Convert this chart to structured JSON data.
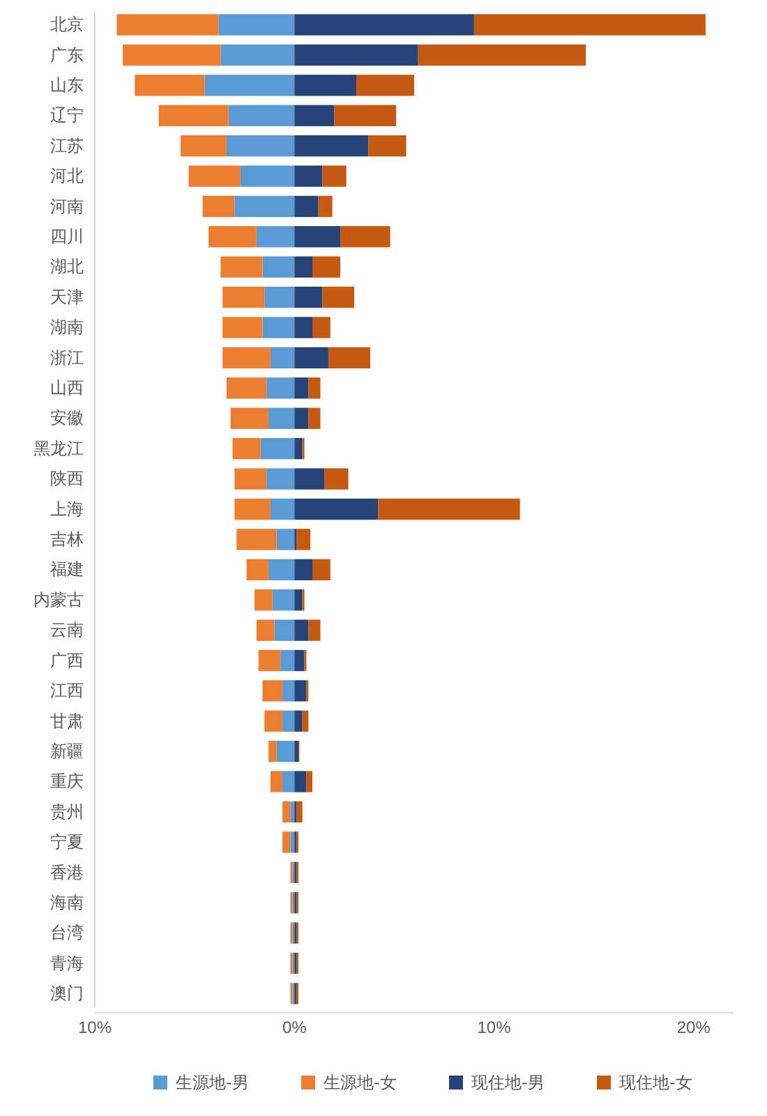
{
  "chart_data": {
    "type": "bar",
    "orientation": "horizontal",
    "stacked": true,
    "categories": [
      "北京",
      "广东",
      "山东",
      "辽宁",
      "江苏",
      "河北",
      "河南",
      "四川",
      "湖北",
      "天津",
      "湖南",
      "浙江",
      "山西",
      "安徽",
      "黑龙江",
      "陕西",
      "上海",
      "吉林",
      "福建",
      "内蒙古",
      "云南",
      "广西",
      "江西",
      "甘肃",
      "新疆",
      "重庆",
      "贵州",
      "宁夏",
      "香港",
      "海南",
      "台湾",
      "青海",
      "澳门"
    ],
    "series": [
      {
        "name": "生源地-男",
        "color": "#5b9bd5",
        "values": [
          -3.8,
          -3.7,
          -4.5,
          -3.3,
          -3.4,
          -2.7,
          -3.0,
          -1.9,
          -1.6,
          -1.5,
          -1.6,
          -1.2,
          -1.4,
          -1.3,
          -1.7,
          -1.4,
          -1.2,
          -0.9,
          -1.3,
          -1.1,
          -1.0,
          -0.7,
          -0.6,
          -0.6,
          -0.9,
          -0.6,
          -0.2,
          -0.2,
          -0.1,
          -0.1,
          -0.1,
          -0.1,
          -0.1
        ]
      },
      {
        "name": "生源地-女",
        "color": "#ed7d31",
        "values": [
          -5.1,
          -4.9,
          -3.5,
          -3.5,
          -2.3,
          -2.6,
          -1.6,
          -2.4,
          -2.1,
          -2.1,
          -2.0,
          -2.4,
          -2.0,
          -1.9,
          -1.4,
          -1.6,
          -1.8,
          -2.0,
          -1.1,
          -0.9,
          -0.9,
          -1.1,
          -1.0,
          -0.9,
          -0.4,
          -0.6,
          -0.4,
          -0.4,
          -0.1,
          -0.1,
          -0.1,
          -0.1,
          -0.1
        ]
      },
      {
        "name": "现住地-男",
        "color": "#264478",
        "values": [
          9.0,
          6.2,
          3.1,
          2.0,
          3.7,
          1.4,
          1.2,
          2.3,
          0.9,
          1.4,
          0.9,
          1.7,
          0.7,
          0.7,
          0.4,
          1.5,
          4.2,
          0.1,
          0.9,
          0.4,
          0.7,
          0.5,
          0.6,
          0.4,
          0.2,
          0.6,
          0.1,
          0.1,
          0.1,
          0.1,
          0.1,
          0.1,
          0.1
        ]
      },
      {
        "name": "现住地-女",
        "color": "#c55a11",
        "values": [
          11.6,
          8.4,
          2.9,
          3.1,
          1.9,
          1.2,
          0.7,
          2.5,
          1.4,
          1.6,
          0.9,
          2.1,
          0.6,
          0.6,
          0.1,
          1.2,
          7.1,
          0.7,
          0.9,
          0.1,
          0.6,
          0.1,
          0.1,
          0.3,
          0.05,
          0.3,
          0.3,
          0.1,
          0.1,
          0.1,
          0.1,
          0.1,
          0.1
        ]
      }
    ],
    "xlim": [
      -10,
      22
    ],
    "xticks": [
      {
        "value": -10,
        "label": "10%"
      },
      {
        "value": 0,
        "label": "0%"
      },
      {
        "value": 10,
        "label": "10%"
      },
      {
        "value": 20,
        "label": "20%"
      }
    ],
    "legend": "bottom",
    "grid": false
  }
}
